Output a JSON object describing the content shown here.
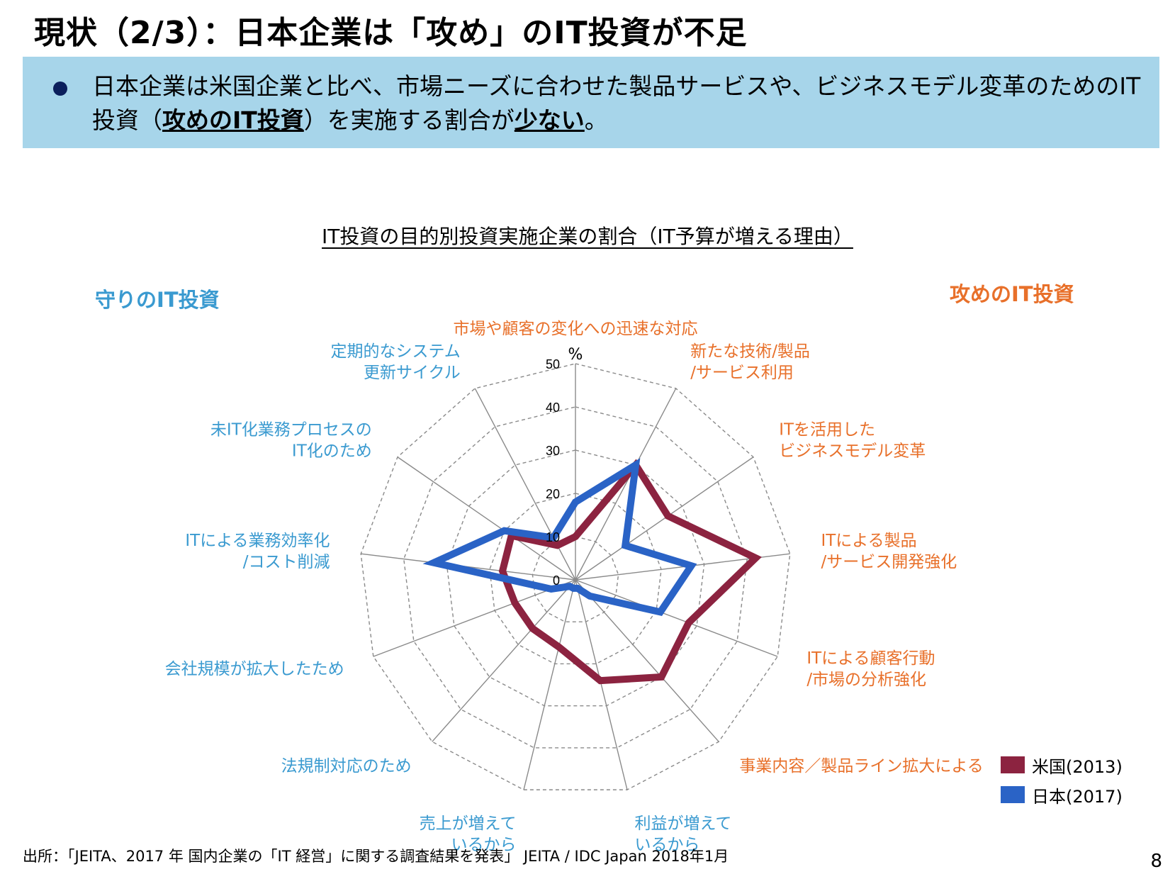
{
  "title": "現状（2/3）：日本企業は「攻め」のIT投資が不足",
  "banner": {
    "text_before": "日本企業は米国企業と比べ、市場ニーズに合わせた製品サービスや、ビジネスモデル変革のためのIT投資（",
    "emphasis1": "攻めのIT投資",
    "text_middle": "）を実施する割合が",
    "emphasis2": "少ない",
    "text_after": "。"
  },
  "labels": {
    "defensive": "守りのIT投資",
    "offensive": "攻めのIT投資"
  },
  "colors": {
    "us": "#8c2340",
    "japan": "#2a63c6",
    "defensive_text": "#3a9ad0",
    "offensive_text": "#e8702a"
  },
  "chart_data": {
    "type": "radar",
    "title": "IT投資の目的別投資実施企業の割合（IT予算が増える理由）",
    "unit": "%",
    "rlim": [
      0,
      50
    ],
    "ticks": [
      "0",
      "10",
      "20",
      "30",
      "40",
      "50"
    ],
    "grid": true,
    "legend_position": "bottom-right",
    "categories": [
      "市場や顧客の変化への迅速な対応",
      "新たな技術/製品\n/サービス利用",
      "ITを活用した\nビジネスモデル変革",
      "ITによる製品\n/サービス開発強化",
      "ITによる顧客行動\n/市場の分析強化",
      "事業内容／製品ライン拡大による",
      "利益が増えて\nいるから",
      "売上が増えて\nいるから",
      "法規制対応のため",
      "会社規模が拡大したため",
      "ITによる業務効率化\n/コスト削減",
      "未IT化業務プロセスの\nIT化のため",
      "定期的なシステム\n更新サイクル"
    ],
    "category_groups": [
      "offensive",
      "offensive",
      "offensive",
      "offensive",
      "offensive",
      "offensive",
      "defensive",
      "defensive",
      "defensive",
      "defensive",
      "defensive",
      "defensive",
      "defensive"
    ],
    "series": [
      {
        "name": "米国(2013)",
        "color": "#8c2340",
        "values": [
          10,
          30,
          26,
          42,
          28,
          30,
          24,
          16,
          15,
          15,
          17,
          18,
          9
        ]
      },
      {
        "name": "日本(2017)",
        "color": "#2a63c6",
        "values": [
          18,
          30,
          14,
          27,
          21,
          5,
          2,
          2,
          2,
          6,
          33,
          20,
          11
        ]
      }
    ]
  },
  "source": "出所：「JEITA、2017 年 国内企業の「IT 経営」に関する調査結果を発表」 JEITA / IDC Japan 2018年1月",
  "page_number": "8"
}
